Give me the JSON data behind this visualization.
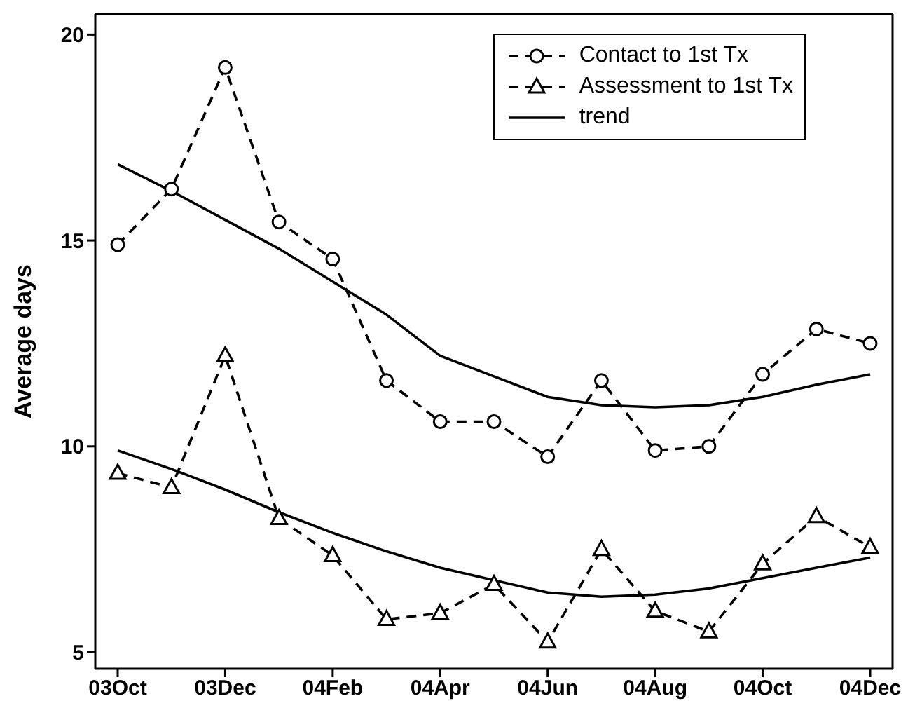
{
  "chart_data": {
    "type": "line",
    "ylabel": "Average days",
    "categories": [
      "03Oct",
      null,
      "03Dec",
      null,
      "04Feb",
      null,
      "04Apr",
      null,
      "04Jun",
      null,
      "04Aug",
      null,
      "04Oct",
      null,
      "04Dec"
    ],
    "ylim": [
      4.6,
      20.5
    ],
    "yticks": [
      5,
      10,
      15,
      20
    ],
    "legend": "top right",
    "series": [
      {
        "name": "Contact to 1st Tx",
        "color": "#000000",
        "marker": "circle",
        "line_style": "dashed",
        "values": [
          14.9,
          16.25,
          19.2,
          15.45,
          14.55,
          11.6,
          10.6,
          10.6,
          9.75,
          11.6,
          9.9,
          10.0,
          11.75,
          12.85,
          12.5
        ]
      },
      {
        "name": "Assessment to 1st Tx",
        "color": "#000000",
        "marker": "triangle",
        "line_style": "dashed",
        "values": [
          9.35,
          9.0,
          12.2,
          8.25,
          7.35,
          5.8,
          5.95,
          6.65,
          5.25,
          7.5,
          6.0,
          5.5,
          7.15,
          8.3,
          7.55
        ]
      },
      {
        "name": "trend",
        "color": "#000000",
        "marker": "none",
        "line_style": "solid",
        "values": [
          16.85,
          16.2,
          15.5,
          14.8,
          14.0,
          13.2,
          12.2,
          11.7,
          11.2,
          11.0,
          10.95,
          11.0,
          11.2,
          11.5,
          11.75
        ]
      },
      {
        "color": "#000000",
        "marker": "none",
        "line_style": "solid",
        "values": [
          9.9,
          9.45,
          8.95,
          8.4,
          7.9,
          7.45,
          7.05,
          6.75,
          6.45,
          6.35,
          6.4,
          6.55,
          6.8,
          7.05,
          7.3
        ]
      }
    ]
  }
}
